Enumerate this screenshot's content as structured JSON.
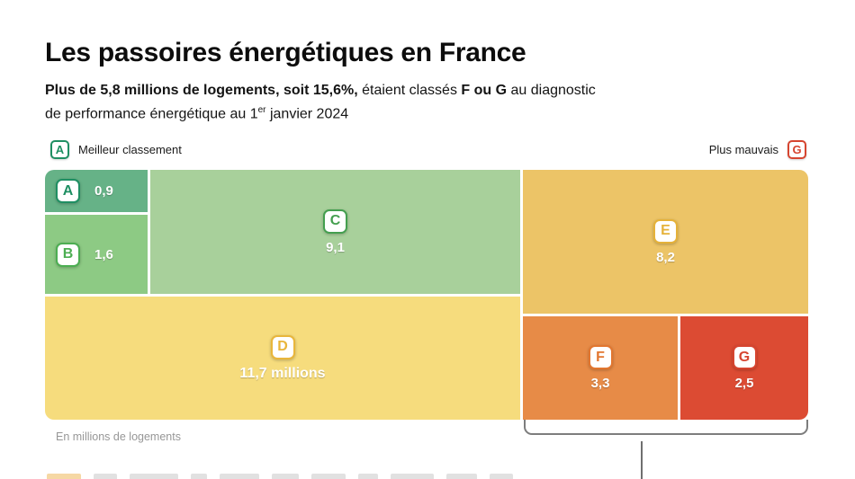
{
  "title": "Les passoires énergétiques en France",
  "subtitle": {
    "bold_lead": "Plus de 5,8 millions de logements, soit 15,6%,",
    "mid": " étaient classés ",
    "bold_fg": "F ou G",
    "tail": " au diagnostic",
    "line2_pre": "de performance énergétique au 1",
    "line2_sup": "er",
    "line2_post": " janvier 2024"
  },
  "legend": {
    "best_badge": "A",
    "best_label": "Meilleur classement",
    "worst_label": "Plus mauvais",
    "worst_badge": "G"
  },
  "footnote": "En millions de logements",
  "chart_data": {
    "type": "treemap",
    "title": "Les passoires énergétiques en France",
    "unit": "millions de logements",
    "categories": [
      "A",
      "B",
      "C",
      "D",
      "E",
      "F",
      "G"
    ],
    "values": [
      0.9,
      1.6,
      9.1,
      11.7,
      8.2,
      3.3,
      2.5
    ],
    "value_labels": [
      "0,9",
      "1,6",
      "9,1",
      "11,7 millions",
      "8,2",
      "3,3",
      "2,5"
    ],
    "highlighted_total": "5,8",
    "highlighted_share_pct": 15.6,
    "colors": {
      "A": "#66b287",
      "B": "#8dca84",
      "C": "#a8d09b",
      "D": "#f6dc7d",
      "E": "#ecc467",
      "F": "#e78b47",
      "G": "#dc4b33"
    },
    "badge_colors": {
      "A": "#1f8f63",
      "B": "#4cae52",
      "C": "#449f4f",
      "D": "#e9b63b",
      "E": "#e5b23a",
      "F": "#e2762f",
      "G": "#d64530"
    },
    "legend_position": "top",
    "grid": false
  }
}
